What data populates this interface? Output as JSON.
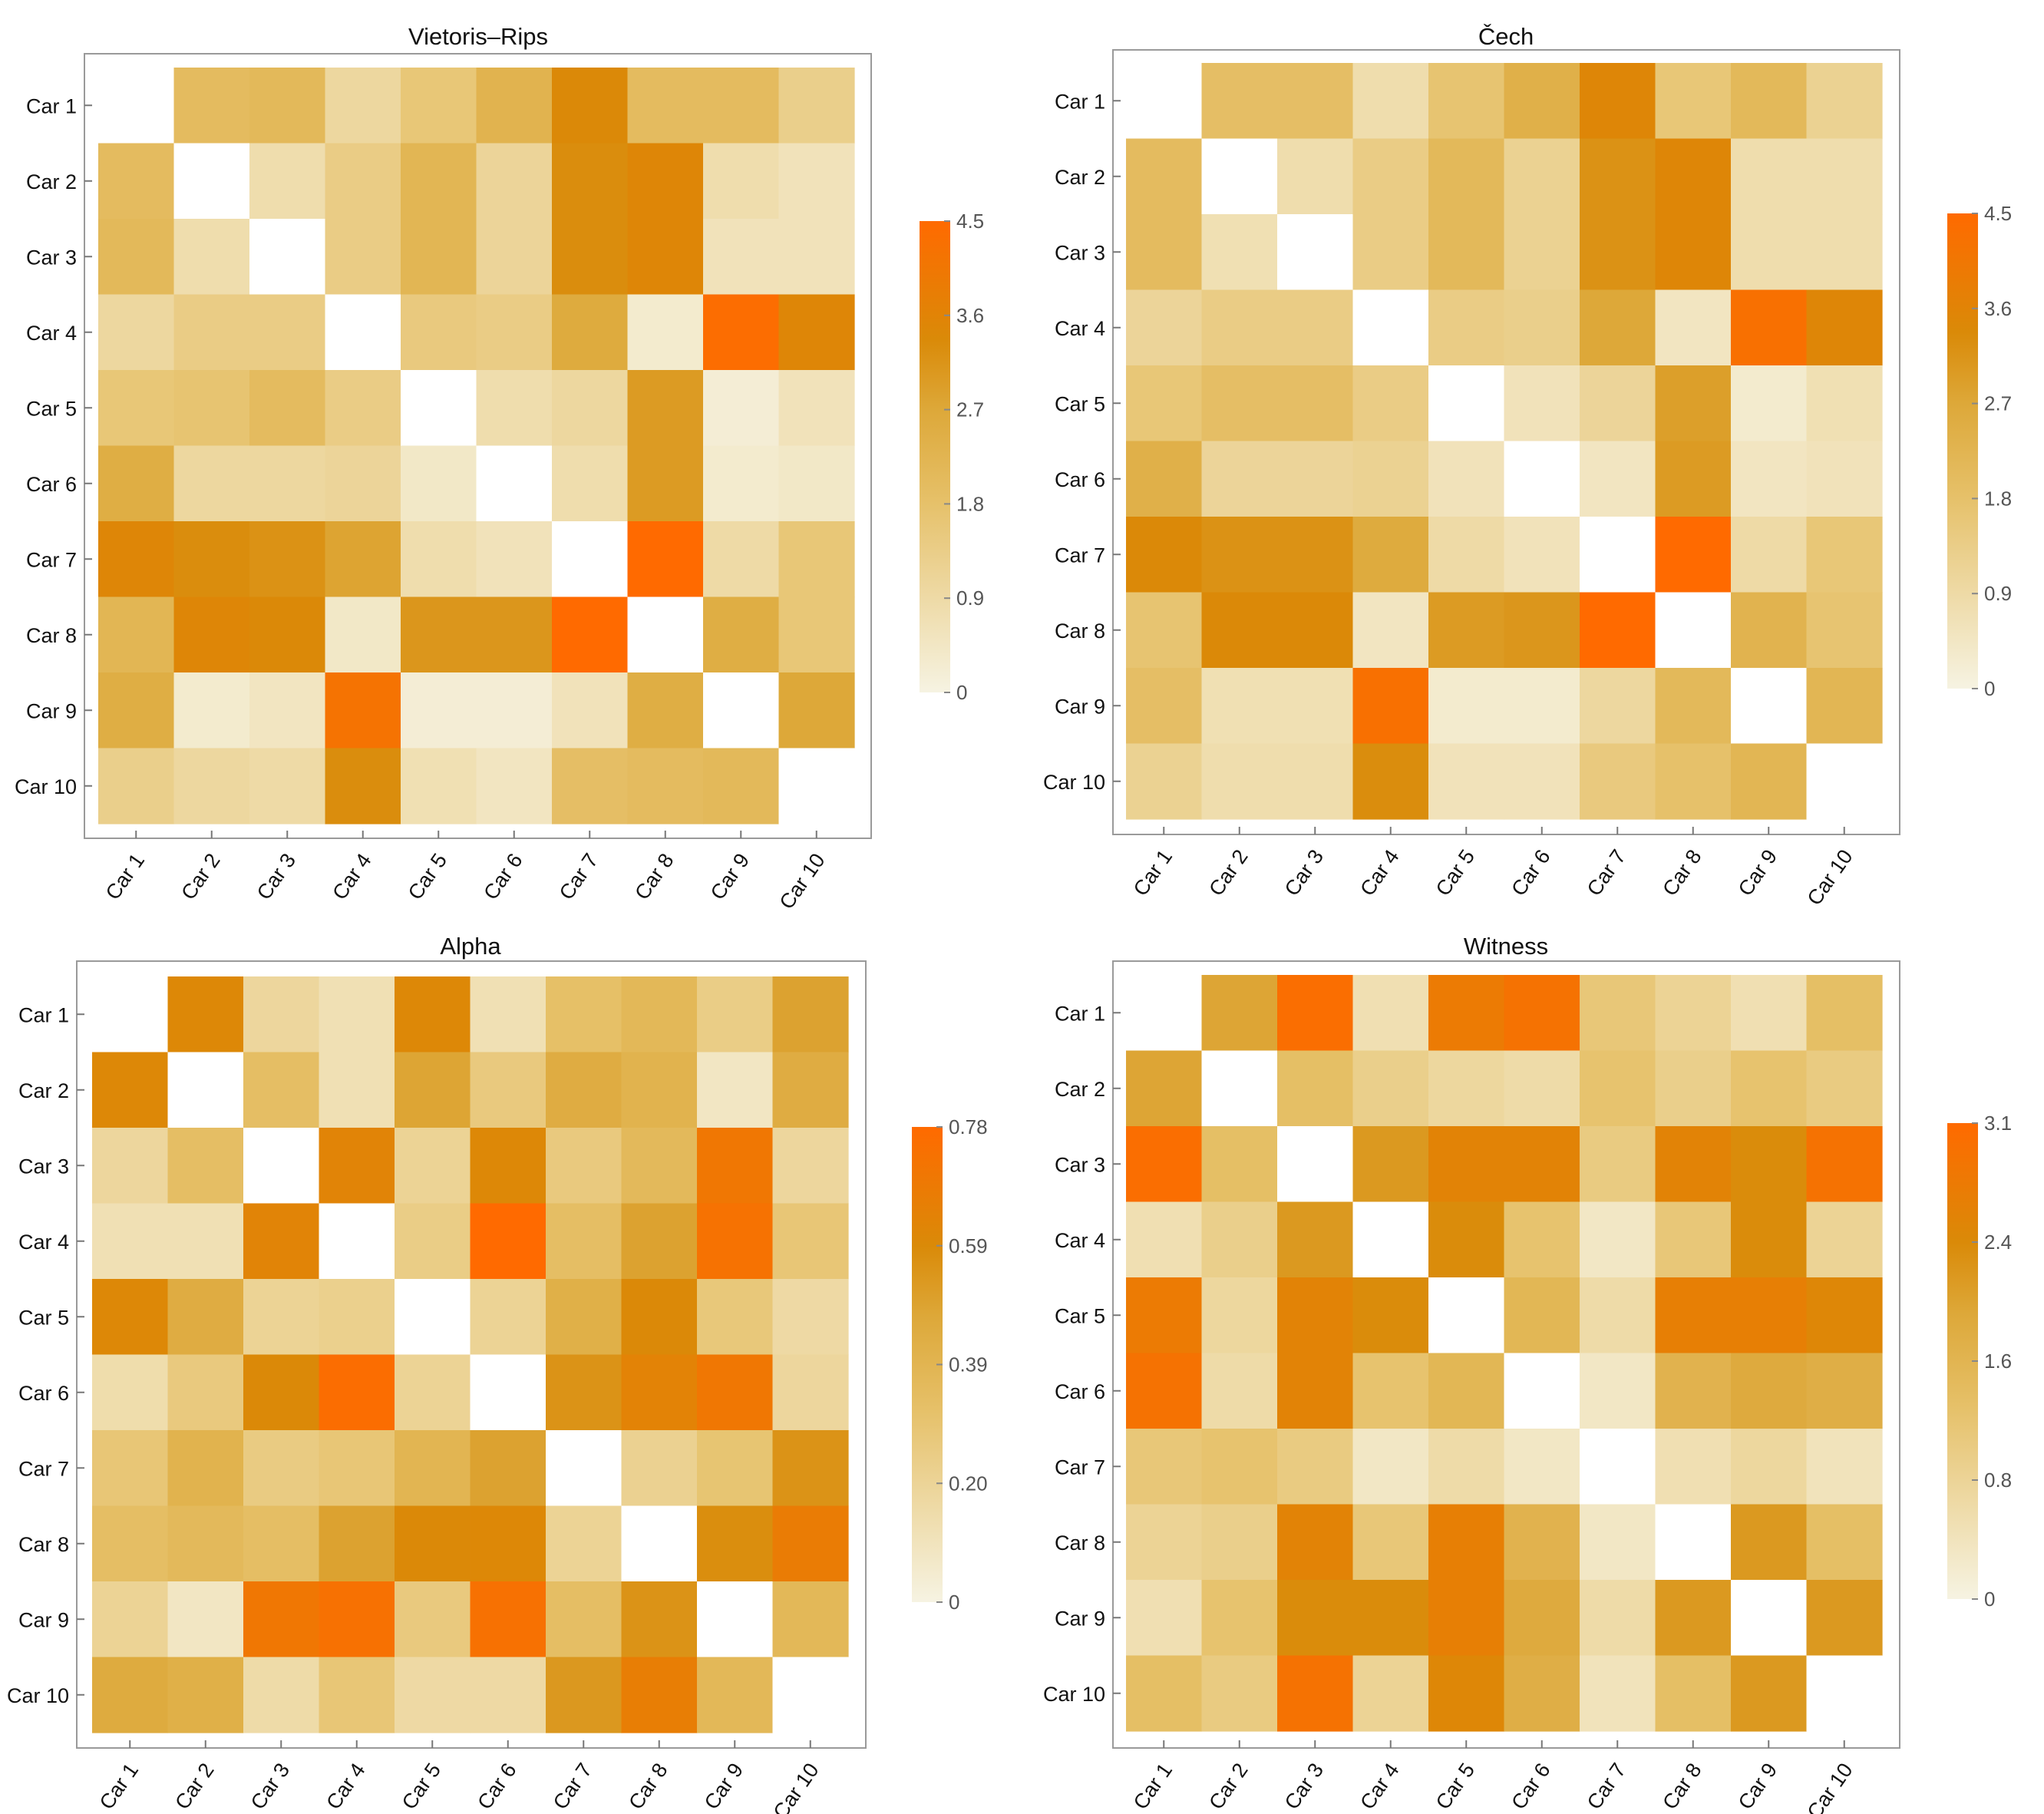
{
  "chart_data": [
    {
      "type": "heatmap",
      "title": "Vietoris–Rips",
      "row_labels": [
        "Car 1",
        "Car 2",
        "Car 3",
        "Car 4",
        "Car 5",
        "Car 6",
        "Car 7",
        "Car 8",
        "Car 9",
        "Car 10"
      ],
      "col_labels": [
        "Car 1",
        "Car 2",
        "Car 3",
        "Car 4",
        "Car 5",
        "Car 6",
        "Car 7",
        "Car 8",
        "Car 9",
        "Car 10"
      ],
      "colorbar": {
        "min": 0,
        "max": 4.5,
        "ticks": [
          "0",
          "0.9",
          "1.8",
          "2.7",
          "3.6",
          "4.5"
        ]
      },
      "values": [
        [
          0.0,
          2.0,
          2.1,
          1.0,
          1.6,
          2.3,
          3.4,
          2.0,
          2.0,
          1.3
        ],
        [
          2.0,
          0.0,
          0.8,
          1.4,
          2.2,
          1.1,
          3.3,
          3.5,
          0.8,
          0.6
        ],
        [
          2.1,
          0.8,
          0.0,
          1.4,
          2.2,
          1.1,
          3.3,
          3.5,
          0.6,
          0.6
        ],
        [
          1.0,
          1.4,
          1.4,
          0.0,
          1.5,
          1.4,
          2.6,
          0.3,
          4.4,
          3.5
        ],
        [
          1.6,
          1.7,
          2.0,
          1.4,
          0.0,
          0.8,
          1.0,
          3.0,
          0.2,
          0.6
        ],
        [
          2.5,
          1.0,
          1.0,
          1.1,
          0.4,
          0.0,
          0.8,
          3.0,
          0.3,
          0.4
        ],
        [
          3.5,
          3.3,
          3.2,
          2.8,
          0.8,
          0.6,
          0.0,
          4.5,
          0.9,
          1.6
        ],
        [
          2.2,
          3.5,
          3.4,
          0.4,
          3.1,
          3.1,
          4.5,
          0.0,
          2.5,
          1.6
        ],
        [
          2.5,
          0.3,
          0.5,
          4.2,
          0.2,
          0.2,
          0.6,
          2.5,
          0.0,
          2.7
        ],
        [
          1.3,
          1.0,
          0.9,
          3.3,
          0.7,
          0.5,
          1.9,
          2.0,
          2.1,
          0.0
        ]
      ]
    },
    {
      "type": "heatmap",
      "title": "Čech",
      "row_labels": [
        "Car 1",
        "Car 2",
        "Car 3",
        "Car 4",
        "Car 5",
        "Car 6",
        "Car 7",
        "Car 8",
        "Car 9",
        "Car 10"
      ],
      "col_labels": [
        "Car 1",
        "Car 2",
        "Car 3",
        "Car 4",
        "Car 5",
        "Car 6",
        "Car 7",
        "Car 8",
        "Car 9",
        "Car 10"
      ],
      "colorbar": {
        "min": 0,
        "max": 4.5,
        "ticks": [
          "0",
          "0.9",
          "1.8",
          "2.7",
          "3.6",
          "4.5"
        ]
      },
      "values": [
        [
          0.0,
          1.9,
          1.9,
          0.8,
          1.7,
          2.4,
          3.5,
          1.6,
          2.1,
          1.2
        ],
        [
          2.0,
          0.0,
          0.8,
          1.4,
          2.1,
          1.2,
          3.2,
          3.5,
          0.8,
          0.8
        ],
        [
          2.0,
          0.7,
          0.0,
          1.4,
          2.1,
          1.2,
          3.2,
          3.5,
          0.8,
          0.8
        ],
        [
          1.1,
          1.4,
          1.4,
          0.0,
          1.4,
          1.3,
          2.7,
          0.5,
          4.3,
          3.5
        ],
        [
          1.6,
          1.9,
          1.9,
          1.4,
          0.0,
          0.6,
          1.1,
          2.9,
          0.3,
          0.7
        ],
        [
          2.4,
          1.1,
          1.1,
          1.2,
          0.6,
          0.0,
          0.5,
          3.0,
          0.5,
          0.6
        ],
        [
          3.4,
          3.2,
          3.2,
          2.6,
          0.9,
          0.6,
          0.0,
          4.5,
          0.9,
          1.6
        ],
        [
          1.7,
          3.4,
          3.4,
          0.5,
          3.0,
          3.1,
          4.5,
          0.0,
          2.3,
          1.7
        ],
        [
          1.9,
          0.7,
          0.7,
          4.3,
          0.3,
          0.3,
          1.0,
          2.1,
          0.0,
          2.2
        ],
        [
          1.2,
          0.8,
          0.8,
          3.3,
          0.6,
          0.6,
          1.5,
          1.8,
          2.2,
          0.0
        ]
      ]
    },
    {
      "type": "heatmap",
      "title": "Alpha",
      "row_labels": [
        "Car 1",
        "Car 2",
        "Car 3",
        "Car 4",
        "Car 5",
        "Car 6",
        "Car 7",
        "Car 8",
        "Car 9",
        "Car 10"
      ],
      "col_labels": [
        "Car 1",
        "Car 2",
        "Car 3",
        "Car 4",
        "Car 5",
        "Car 6",
        "Car 7",
        "Car 8",
        "Car 9",
        "Car 10"
      ],
      "colorbar": {
        "min": 0,
        "max": 0.78,
        "ticks": [
          "0",
          "0.20",
          "0.39",
          "0.59",
          "0.78"
        ]
      },
      "values": [
        [
          0.0,
          0.6,
          0.18,
          0.12,
          0.6,
          0.12,
          0.32,
          0.37,
          0.24,
          0.49
        ],
        [
          0.6,
          0.0,
          0.33,
          0.12,
          0.48,
          0.26,
          0.44,
          0.4,
          0.08,
          0.44
        ],
        [
          0.18,
          0.33,
          0.0,
          0.62,
          0.2,
          0.6,
          0.26,
          0.36,
          0.7,
          0.18
        ],
        [
          0.12,
          0.12,
          0.62,
          0.0,
          0.24,
          0.78,
          0.33,
          0.49,
          0.73,
          0.28
        ],
        [
          0.6,
          0.44,
          0.2,
          0.22,
          0.0,
          0.2,
          0.42,
          0.59,
          0.27,
          0.16
        ],
        [
          0.14,
          0.26,
          0.59,
          0.76,
          0.2,
          0.0,
          0.55,
          0.63,
          0.7,
          0.18
        ],
        [
          0.28,
          0.4,
          0.25,
          0.28,
          0.39,
          0.49,
          0.0,
          0.21,
          0.29,
          0.55
        ],
        [
          0.33,
          0.36,
          0.33,
          0.49,
          0.59,
          0.6,
          0.2,
          0.0,
          0.57,
          0.67
        ],
        [
          0.2,
          0.08,
          0.7,
          0.74,
          0.26,
          0.74,
          0.33,
          0.55,
          0.0,
          0.37
        ],
        [
          0.45,
          0.42,
          0.15,
          0.28,
          0.16,
          0.16,
          0.53,
          0.66,
          0.37,
          0.0
        ]
      ]
    },
    {
      "type": "heatmap",
      "title": "Witness",
      "row_labels": [
        "Car 1",
        "Car 2",
        "Car 3",
        "Car 4",
        "Car 5",
        "Car 6",
        "Car 7",
        "Car 8",
        "Car 9",
        "Car 10"
      ],
      "col_labels": [
        "Car 1",
        "Car 2",
        "Car 3",
        "Car 4",
        "Car 5",
        "Car 6",
        "Car 7",
        "Car 8",
        "Car 9",
        "Car 10"
      ],
      "colorbar": {
        "min": 0,
        "max": 3.1,
        "ticks": [
          "0",
          "0.8",
          "1.6",
          "2.4",
          "3.1"
        ]
      },
      "values": [
        [
          0.0,
          1.9,
          3.0,
          0.5,
          2.7,
          2.9,
          1.1,
          0.8,
          0.5,
          1.3
        ],
        [
          1.9,
          0.0,
          1.3,
          0.9,
          0.7,
          0.6,
          1.2,
          0.9,
          1.2,
          1.0
        ],
        [
          3.0,
          1.3,
          0.0,
          2.1,
          2.5,
          2.5,
          1.0,
          2.5,
          2.3,
          2.9
        ],
        [
          0.5,
          0.9,
          2.1,
          0.0,
          2.3,
          1.2,
          0.3,
          1.1,
          2.3,
          0.8
        ],
        [
          2.7,
          0.7,
          2.5,
          2.3,
          0.0,
          1.5,
          0.6,
          2.6,
          2.6,
          2.4
        ],
        [
          2.9,
          0.6,
          2.5,
          1.2,
          1.5,
          0.0,
          0.3,
          1.6,
          1.8,
          1.7
        ],
        [
          1.1,
          1.2,
          1.0,
          0.3,
          0.6,
          0.3,
          0.0,
          0.5,
          0.7,
          0.4
        ],
        [
          0.8,
          0.9,
          2.5,
          1.1,
          2.6,
          1.6,
          0.3,
          0.0,
          2.1,
          1.3
        ],
        [
          0.5,
          1.2,
          2.3,
          2.3,
          2.6,
          1.8,
          0.6,
          2.1,
          0.0,
          2.1
        ],
        [
          1.3,
          1.0,
          2.9,
          0.8,
          2.4,
          1.7,
          0.4,
          1.3,
          2.1,
          0.0
        ]
      ]
    }
  ]
}
